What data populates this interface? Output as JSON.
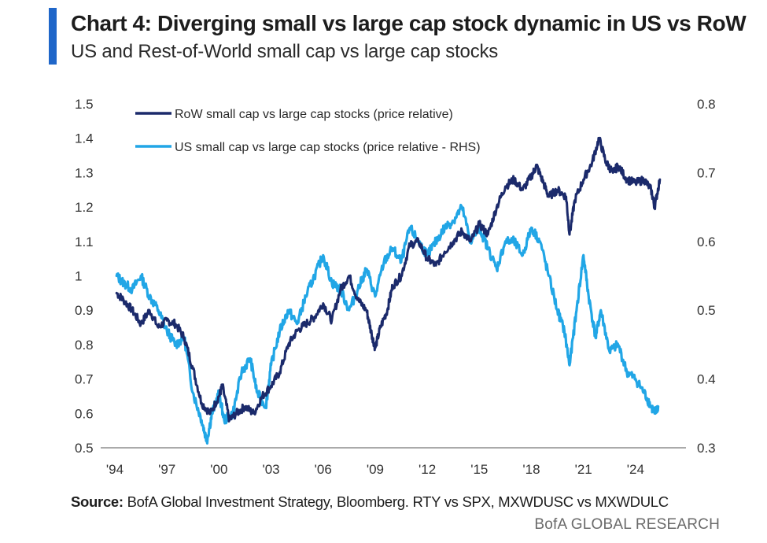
{
  "header": {
    "title": "Chart 4: Diverging small vs large cap stock dynamic in US vs RoW",
    "subtitle": "US and Rest-of-World small cap vs large cap stocks"
  },
  "footer": {
    "source_label": "Source:",
    "source_text": " BofA Global Investment Strategy, Bloomberg. RTY vs SPX, MXWDUSC vs MXWDULC",
    "brand": "BofA GLOBAL RESEARCH"
  },
  "colors": {
    "row": "#1b2a6b",
    "us": "#21a6e6",
    "accent": "#1f66c9"
  },
  "chart_data": {
    "type": "line",
    "x_ticks": [
      "'94",
      "'97",
      "'00",
      "'03",
      "'06",
      "'09",
      "'12",
      "'15",
      "'18",
      "'21",
      "'24"
    ],
    "x_range": [
      1994,
      2026
    ],
    "y_left": {
      "range": [
        0.5,
        1.5
      ],
      "ticks": [
        "0.5",
        "0.6",
        "0.7",
        "0.8",
        "0.9",
        "1",
        "1.1",
        "1.2",
        "1.3",
        "1.4",
        "1.5"
      ]
    },
    "y_right": {
      "range": [
        0.3,
        0.8
      ],
      "ticks": [
        "0.3",
        "0.4",
        "0.5",
        "0.6",
        "0.7",
        "0.8"
      ]
    },
    "grid": false,
    "legend_position": "top-left",
    "series": [
      {
        "name": "RoW small cap vs large cap stocks (price relative)",
        "axis": "left",
        "points": [
          [
            1994.1,
            0.95
          ],
          [
            1994.5,
            0.93
          ],
          [
            1995.0,
            0.9
          ],
          [
            1995.5,
            0.86
          ],
          [
            1996.0,
            0.9
          ],
          [
            1996.5,
            0.85
          ],
          [
            1997.0,
            0.87
          ],
          [
            1997.5,
            0.86
          ],
          [
            1998.0,
            0.82
          ],
          [
            1998.5,
            0.73
          ],
          [
            1999.0,
            0.63
          ],
          [
            1999.5,
            0.6
          ],
          [
            2000.0,
            0.65
          ],
          [
            2000.2,
            0.68
          ],
          [
            2000.6,
            0.58
          ],
          [
            2001.0,
            0.6
          ],
          [
            2001.5,
            0.62
          ],
          [
            2002.0,
            0.6
          ],
          [
            2002.5,
            0.65
          ],
          [
            2003.0,
            0.68
          ],
          [
            2003.5,
            0.72
          ],
          [
            2004.0,
            0.8
          ],
          [
            2004.5,
            0.84
          ],
          [
            2005.0,
            0.86
          ],
          [
            2005.5,
            0.88
          ],
          [
            2006.0,
            0.92
          ],
          [
            2006.5,
            0.87
          ],
          [
            2007.0,
            0.96
          ],
          [
            2007.5,
            1.0
          ],
          [
            2008.0,
            0.93
          ],
          [
            2008.5,
            0.9
          ],
          [
            2008.8,
            0.83
          ],
          [
            2009.0,
            0.79
          ],
          [
            2009.3,
            0.85
          ],
          [
            2009.7,
            0.9
          ],
          [
            2010.0,
            0.97
          ],
          [
            2010.5,
            1.0
          ],
          [
            2011.0,
            1.09
          ],
          [
            2011.5,
            1.1
          ],
          [
            2012.0,
            1.05
          ],
          [
            2012.5,
            1.03
          ],
          [
            2013.0,
            1.07
          ],
          [
            2013.5,
            1.1
          ],
          [
            2014.0,
            1.13
          ],
          [
            2014.5,
            1.1
          ],
          [
            2015.0,
            1.15
          ],
          [
            2015.5,
            1.12
          ],
          [
            2016.0,
            1.2
          ],
          [
            2016.5,
            1.26
          ],
          [
            2017.0,
            1.28
          ],
          [
            2017.5,
            1.25
          ],
          [
            2018.0,
            1.29
          ],
          [
            2018.3,
            1.32
          ],
          [
            2018.7,
            1.27
          ],
          [
            2019.0,
            1.23
          ],
          [
            2019.5,
            1.25
          ],
          [
            2020.0,
            1.23
          ],
          [
            2020.2,
            1.12
          ],
          [
            2020.5,
            1.22
          ],
          [
            2021.0,
            1.28
          ],
          [
            2021.5,
            1.33
          ],
          [
            2021.9,
            1.4
          ],
          [
            2022.3,
            1.33
          ],
          [
            2022.7,
            1.3
          ],
          [
            2023.0,
            1.32
          ],
          [
            2023.5,
            1.28
          ],
          [
            2024.0,
            1.27
          ],
          [
            2024.5,
            1.28
          ],
          [
            2024.9,
            1.25
          ],
          [
            2025.1,
            1.2
          ],
          [
            2025.4,
            1.28
          ]
        ]
      },
      {
        "name": "US small cap vs large cap stocks (price relative - RHS)",
        "axis": "right",
        "points": [
          [
            1994.1,
            0.55
          ],
          [
            1994.5,
            0.54
          ],
          [
            1995.0,
            0.53
          ],
          [
            1995.5,
            0.55
          ],
          [
            1996.0,
            0.52
          ],
          [
            1996.5,
            0.5
          ],
          [
            1997.0,
            0.47
          ],
          [
            1997.5,
            0.45
          ],
          [
            1998.0,
            0.46
          ],
          [
            1998.5,
            0.38
          ],
          [
            1999.0,
            0.34
          ],
          [
            1999.3,
            0.31
          ],
          [
            1999.6,
            0.35
          ],
          [
            2000.0,
            0.38
          ],
          [
            2000.3,
            0.34
          ],
          [
            2000.8,
            0.35
          ],
          [
            2001.3,
            0.41
          ],
          [
            2001.8,
            0.43
          ],
          [
            2002.2,
            0.38
          ],
          [
            2002.7,
            0.36
          ],
          [
            2003.0,
            0.42
          ],
          [
            2003.5,
            0.47
          ],
          [
            2004.0,
            0.5
          ],
          [
            2004.5,
            0.48
          ],
          [
            2005.0,
            0.52
          ],
          [
            2005.5,
            0.55
          ],
          [
            2006.0,
            0.58
          ],
          [
            2006.5,
            0.54
          ],
          [
            2007.0,
            0.53
          ],
          [
            2007.5,
            0.5
          ],
          [
            2008.0,
            0.53
          ],
          [
            2008.5,
            0.56
          ],
          [
            2009.0,
            0.52
          ],
          [
            2009.5,
            0.57
          ],
          [
            2010.0,
            0.59
          ],
          [
            2010.5,
            0.57
          ],
          [
            2011.0,
            0.62
          ],
          [
            2011.5,
            0.6
          ],
          [
            2012.0,
            0.58
          ],
          [
            2012.5,
            0.6
          ],
          [
            2013.0,
            0.62
          ],
          [
            2013.5,
            0.63
          ],
          [
            2014.0,
            0.65
          ],
          [
            2014.5,
            0.6
          ],
          [
            2015.0,
            0.62
          ],
          [
            2015.5,
            0.59
          ],
          [
            2016.0,
            0.56
          ],
          [
            2016.5,
            0.6
          ],
          [
            2017.0,
            0.6
          ],
          [
            2017.5,
            0.58
          ],
          [
            2018.0,
            0.62
          ],
          [
            2018.5,
            0.6
          ],
          [
            2019.0,
            0.55
          ],
          [
            2019.5,
            0.5
          ],
          [
            2019.9,
            0.47
          ],
          [
            2020.2,
            0.42
          ],
          [
            2020.6,
            0.5
          ],
          [
            2021.0,
            0.58
          ],
          [
            2021.3,
            0.52
          ],
          [
            2021.7,
            0.46
          ],
          [
            2022.0,
            0.5
          ],
          [
            2022.5,
            0.44
          ],
          [
            2023.0,
            0.45
          ],
          [
            2023.5,
            0.41
          ],
          [
            2024.0,
            0.4
          ],
          [
            2024.5,
            0.38
          ],
          [
            2024.9,
            0.36
          ],
          [
            2025.1,
            0.35
          ],
          [
            2025.3,
            0.36
          ]
        ]
      }
    ]
  }
}
